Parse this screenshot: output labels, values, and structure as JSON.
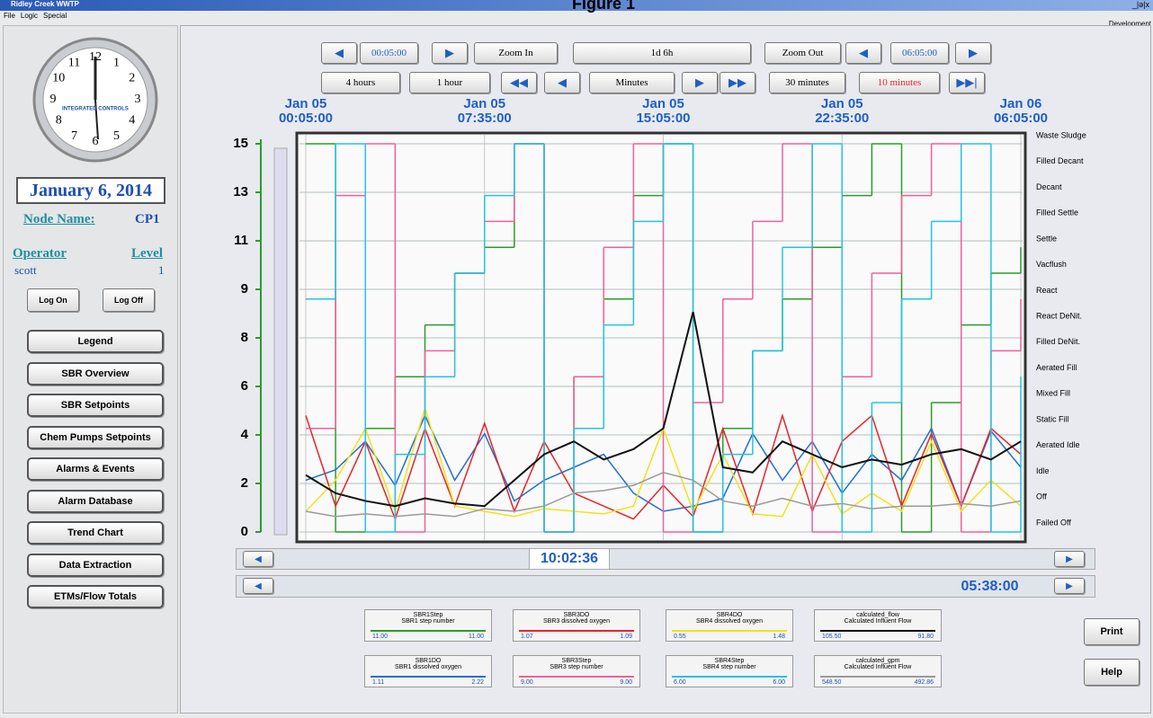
{
  "header": {
    "figure_title": "Figure 1",
    "app_title": "Ridley Creek WWTP",
    "menu": [
      "File",
      "Logic",
      "Special"
    ],
    "mode": "Development"
  },
  "clock": {
    "numerals": [
      "12",
      "1",
      "2",
      "3",
      "4",
      "5",
      "6",
      "7",
      "8",
      "9",
      "10",
      "11"
    ],
    "brand": "INTEGRATED CONTROLS"
  },
  "sidebar": {
    "date": "January 6, 2014",
    "node_label": "Node Name:",
    "node_value": "CP1",
    "operator_label": "Operator",
    "level_label": "Level",
    "operator": "scott",
    "level": "1",
    "log_on": "Log On",
    "log_off": "Log Off",
    "nav": [
      "Legend",
      "SBR Overview",
      "SBR Setpoints",
      "Chem Pumps Setpoints",
      "Alarms & Events",
      "Alarm Database",
      "Trend Chart",
      "Data Extraction",
      "ETMs/Flow Totals"
    ]
  },
  "toolbar": {
    "start": "00:05:00",
    "zoom_in": "Zoom In",
    "span": "1d 6h",
    "zoom_out": "Zoom Out",
    "end": "06:05:00",
    "four_hours": "4 hours",
    "one_hour": "1 hour",
    "minutes": "Minutes",
    "thirty_minutes": "30 minutes",
    "ten_minutes": "10 minutes"
  },
  "chart_data": {
    "type": "line",
    "categories": [
      "Jan 05\n00:05:00",
      null,
      null,
      null,
      null,
      null,
      "Jan 05\n07:35:00",
      null,
      null,
      null,
      null,
      null,
      "Jan 05\n15:05:00",
      null,
      null,
      null,
      null,
      null,
      "Jan 05\n22:35:00",
      null,
      null,
      null,
      null,
      null,
      "Jan 06\n06:05:00"
    ],
    "ylim": [
      0,
      15
    ],
    "yticks": [
      0,
      {
        "value": 1.875,
        "label": "2"
      },
      {
        "value": 3.75,
        "label": "4"
      },
      {
        "value": 5.625,
        "label": "6"
      },
      {
        "value": 7.5,
        "label": "8"
      },
      {
        "value": 9.375,
        "label": "9"
      },
      {
        "value": 11.25,
        "label": "11"
      },
      {
        "value": 13.125,
        "label": "13"
      },
      15
    ],
    "y2lim": [
      0,
      15
    ],
    "y2ticks": [
      {
        "value": 0,
        "label": "Failed Off"
      },
      {
        "value": 1,
        "label": "Off"
      },
      {
        "value": 2,
        "label": "Idle"
      },
      {
        "value": 3,
        "label": "Aerated Idle"
      },
      {
        "value": 4,
        "label": "Static Fill"
      },
      {
        "value": 5,
        "label": "Mixed Fill"
      },
      {
        "value": 6,
        "label": "Aerated Fill"
      },
      {
        "value": 7,
        "label": "Filled DeNit."
      },
      {
        "value": 8,
        "label": "React DeNit."
      },
      {
        "value": 9,
        "label": "React"
      },
      {
        "value": 10,
        "label": "Vacflush"
      },
      {
        "value": 11,
        "label": "Settle"
      },
      {
        "value": 12,
        "label": "Filled Settle"
      },
      {
        "value": 13,
        "label": "Decant"
      },
      {
        "value": 14,
        "label": "Filled Decant"
      },
      {
        "value": 15,
        "label": "Waste Sludge"
      }
    ],
    "grid": true,
    "series": [
      {
        "name": "SBR1Step",
        "description": "SBR1 step number",
        "range_labels": [
          "11.00",
          "11.00"
        ],
        "color": "#2a9d2a",
        "step": true,
        "values": [
          15,
          0,
          4,
          6,
          8,
          10,
          11,
          15,
          0,
          6,
          9,
          13,
          15,
          0,
          4,
          7,
          9,
          11,
          13,
          15,
          0,
          5,
          8,
          10,
          11
        ]
      },
      {
        "name": "SBR1DO",
        "description": "SBR1 dissolved oxygen",
        "range_labels": [
          "1.11",
          "2.22"
        ],
        "color": "#1f6fd6",
        "step": false,
        "values": [
          2,
          2.4,
          3.5,
          1.8,
          4.5,
          2,
          3.8,
          1.2,
          2,
          2.5,
          3,
          1.5,
          0.8,
          1,
          1.3,
          3.8,
          2,
          3.5,
          1.5,
          3,
          2,
          4,
          1,
          3.9,
          2.5
        ]
      },
      {
        "name": "SBR3DO",
        "description": "SBR3 dissolved oxygen",
        "range_labels": [
          "1.07",
          "1.09"
        ],
        "color": "#e8242a",
        "step": false,
        "values": [
          4.5,
          1,
          3.5,
          0.5,
          4,
          1,
          4.2,
          0.8,
          3.5,
          1.5,
          1,
          0.5,
          1.8,
          0.6,
          4,
          0.7,
          4.5,
          0.8,
          3.5,
          4.5,
          1,
          3.8,
          1,
          4,
          3
        ]
      },
      {
        "name": "SBR3Step",
        "description": "SBR3 step number",
        "range_labels": [
          "9.00",
          "9.00"
        ],
        "color": "#f0609a",
        "step": true,
        "values": [
          4,
          13,
          15,
          0,
          7,
          10,
          12,
          15,
          0,
          6,
          11,
          15,
          0,
          5,
          9,
          12,
          15,
          0,
          6,
          10,
          13,
          15,
          0,
          7,
          9
        ]
      },
      {
        "name": "SBR4DO",
        "description": "SBR4 dissolved oxygen",
        "range_labels": [
          "0.55",
          "1.48"
        ],
        "color": "#f2e21a",
        "step": false,
        "values": [
          0.8,
          2,
          4,
          0.8,
          4.8,
          1,
          0.8,
          0.6,
          0.9,
          0.8,
          0.7,
          1,
          4,
          0.8,
          3,
          0.7,
          0.6,
          3,
          0.7,
          1.5,
          0.8,
          3.5,
          0.8,
          2,
          1
        ]
      },
      {
        "name": "SBR4Step",
        "description": "SBR4 step number",
        "range_labels": [
          "6.00",
          "6.00"
        ],
        "color": "#22c4e0",
        "step": true,
        "values": [
          9,
          15,
          0,
          3,
          6,
          10,
          13,
          15,
          0,
          4,
          8,
          12,
          15,
          0,
          3,
          7,
          11,
          15,
          0,
          5,
          9,
          12,
          15,
          0,
          6
        ]
      },
      {
        "name": "calculated_flow",
        "description": "Calculated Influent Flow",
        "range_labels": [
          "105.50",
          "91.80"
        ],
        "color": "#111111",
        "step": false,
        "values": [
          2.2,
          1.5,
          1.2,
          1.0,
          1.3,
          1.1,
          1.0,
          2.0,
          3.0,
          3.5,
          2.8,
          3.2,
          4.0,
          8.5,
          2.5,
          2.3,
          3.5,
          3.0,
          2.5,
          2.8,
          2.6,
          3.0,
          3.2,
          2.8,
          3.5
        ]
      },
      {
        "name": "calculated_gpm",
        "description": "Calculated Influent Flow",
        "range_labels": [
          "548.50",
          "492.86"
        ],
        "color": "#9a9a9a",
        "step": false,
        "values": [
          0.8,
          0.6,
          0.7,
          0.6,
          0.7,
          0.6,
          0.9,
          0.8,
          1.0,
          1.5,
          1.6,
          1.8,
          2.3,
          2.0,
          1.2,
          1.0,
          1.3,
          1.0,
          1.1,
          0.9,
          1.0,
          1.0,
          1.1,
          1.0,
          1.2
        ]
      }
    ]
  },
  "scroll": {
    "cursor_time": "10:02:36",
    "offset_time": "05:38:00"
  },
  "actions": {
    "print": "Print",
    "help": "Help"
  }
}
